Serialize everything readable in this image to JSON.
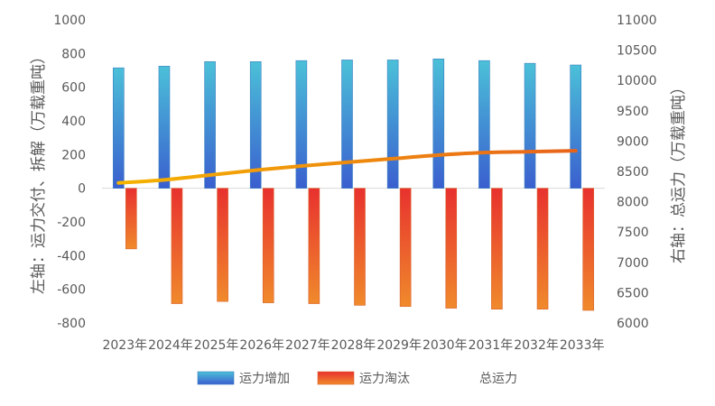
{
  "chart_data": {
    "type": "bar+line",
    "categories": [
      "2023年",
      "2024年",
      "2025年",
      "2026年",
      "2027年",
      "2028年",
      "2029年",
      "2030年",
      "2031年",
      "2032年",
      "2033年"
    ],
    "series": [
      {
        "name": "运力增加",
        "type": "bar",
        "axis": "left",
        "values": [
          715,
          725,
          752,
          752,
          758,
          762,
          762,
          768,
          758,
          742,
          732
        ],
        "colors": [
          "#4bc0d8",
          "#3a5fcf"
        ]
      },
      {
        "name": "运力淘汰",
        "type": "bar",
        "axis": "left",
        "values": [
          -360,
          -685,
          -672,
          -680,
          -685,
          -695,
          -702,
          -712,
          -718,
          -718,
          -725
        ],
        "colors": [
          "#e8312e",
          "#f08a2c"
        ]
      },
      {
        "name": "总运力",
        "type": "line",
        "axis": "right",
        "values": [
          8310,
          8360,
          8440,
          8520,
          8590,
          8650,
          8710,
          8770,
          8810,
          8825,
          8840
        ],
        "colors": [
          "#f5b400",
          "#e8631a"
        ]
      }
    ],
    "left_axis": {
      "title": "左轴：运力交付、拆解（万载重吨）",
      "min": -800,
      "max": 1000,
      "step": 200,
      "ticks": [
        "1000",
        "800",
        "600",
        "400",
        "200",
        "0",
        "-200",
        "-400",
        "-600",
        "-800"
      ]
    },
    "right_axis": {
      "title": "右轴：总运力（万载重吨）",
      "min": 6000,
      "max": 11000,
      "step": 500,
      "ticks": [
        "11000",
        "10500",
        "10000",
        "9500",
        "9000",
        "8500",
        "8000",
        "7500",
        "7000",
        "6500",
        "6000"
      ]
    },
    "legend": {
      "position": "bottom",
      "items": [
        {
          "label": "运力增加"
        },
        {
          "label": "运力淘汰"
        },
        {
          "label": "总运力"
        }
      ]
    },
    "grid": false
  }
}
